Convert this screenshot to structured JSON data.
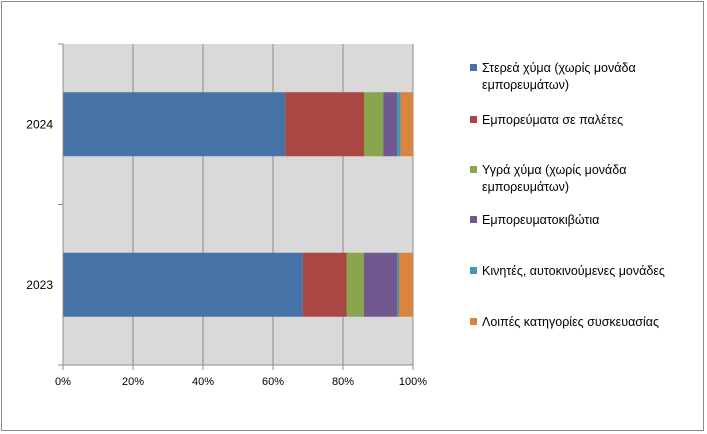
{
  "chart_data": {
    "type": "bar",
    "orientation": "horizontal",
    "stacked": "percent",
    "categories": [
      "2024",
      "2023"
    ],
    "series": [
      {
        "name": "Στερεά χύμα (χωρίς μονάδα εμπορευμάτων)",
        "values": [
          63.5,
          68.5
        ],
        "color": "#4572A7"
      },
      {
        "name": "Εμπορεύματα σε παλέτες",
        "values": [
          22.5,
          12.5
        ],
        "color": "#AA4643"
      },
      {
        "name": "Υγρά χύμα (χωρίς μονάδα εμπορευμάτων)",
        "values": [
          5.5,
          5.0
        ],
        "color": "#89A54E"
      },
      {
        "name": "Εμπορευματοκιβώτια",
        "values": [
          4.0,
          9.5
        ],
        "color": "#71588F"
      },
      {
        "name": "Κινητές, αυτοκινούμενες μονάδες",
        "values": [
          1.0,
          0.5
        ],
        "color": "#4198AF"
      },
      {
        "name": "Λοιπές κατηγορίες συσκευασίας",
        "values": [
          3.5,
          4.0
        ],
        "color": "#DB843D"
      }
    ],
    "xlim": [
      0,
      100
    ],
    "xticks": [
      "0%",
      "20%",
      "40%",
      "60%",
      "80%",
      "100%"
    ],
    "grid": true,
    "plot_background": "#D9D9D9",
    "legend_position": "right"
  }
}
